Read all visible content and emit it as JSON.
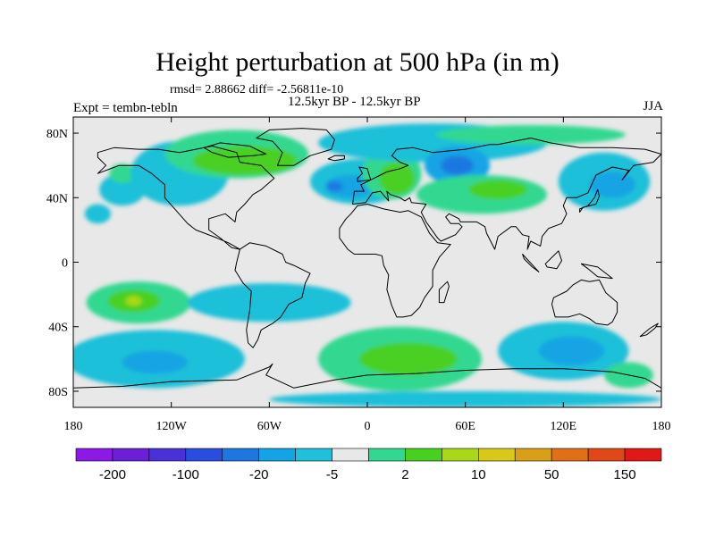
{
  "title": "Height perturbation at 500 hPa (in m)",
  "stats": "rmsd= 2.88662 diff= -2.56811e-10",
  "left_label": "Expt = tembn-tebln",
  "center_label": "12.5kyr BP - 12.5kyr BP",
  "season": "JJA",
  "map": {
    "lon_range": [
      -180,
      180
    ],
    "lat_range": [
      -90,
      90
    ],
    "lat_ticks": [
      {
        "value": 80,
        "label": "80N"
      },
      {
        "value": 40,
        "label": "40N"
      },
      {
        "value": 0,
        "label": "0"
      },
      {
        "value": -40,
        "label": "40S"
      },
      {
        "value": -80,
        "label": "80S"
      }
    ],
    "lon_ticks": [
      {
        "value": -180,
        "label": "180"
      },
      {
        "value": -120,
        "label": "120W"
      },
      {
        "value": -60,
        "label": "60W"
      },
      {
        "value": 0,
        "label": "0"
      },
      {
        "value": 60,
        "label": "60E"
      },
      {
        "value": 120,
        "label": "120E"
      },
      {
        "value": 180,
        "label": "180"
      }
    ],
    "background_color": "#e8e8e8",
    "fields": [
      {
        "lon": -150,
        "lat": 45,
        "rx": 14,
        "ry": 10,
        "color": "#1fc0d8"
      },
      {
        "lon": -150,
        "lat": 55,
        "rx": 8,
        "ry": 6,
        "color": "#30d890"
      },
      {
        "lon": -165,
        "lat": 30,
        "rx": 8,
        "ry": 6,
        "color": "#1fc0d8"
      },
      {
        "lon": -115,
        "lat": 55,
        "rx": 30,
        "ry": 20,
        "color": "#1fc0d8"
      },
      {
        "lon": -80,
        "lat": 67,
        "rx": 44,
        "ry": 15,
        "color": "#30d890"
      },
      {
        "lon": -75,
        "lat": 63,
        "rx": 32,
        "ry": 9,
        "color": "#48d020"
      },
      {
        "lon": -5,
        "lat": 50,
        "rx": 30,
        "ry": 14,
        "color": "#1fc0d8"
      },
      {
        "lon": -10,
        "lat": 47,
        "rx": 16,
        "ry": 7,
        "color": "#12a4e4"
      },
      {
        "lon": -20,
        "lat": 47,
        "rx": 5,
        "ry": 3,
        "color": "#1c78e0"
      },
      {
        "lon": 15,
        "lat": 55,
        "rx": 18,
        "ry": 16,
        "color": "#30d890"
      },
      {
        "lon": 18,
        "lat": 52,
        "rx": 11,
        "ry": 10,
        "color": "#48d020"
      },
      {
        "lon": 40,
        "lat": 74,
        "rx": 70,
        "ry": 12,
        "color": "#1fc0d8"
      },
      {
        "lon": 100,
        "lat": 79,
        "rx": 58,
        "ry": 6,
        "color": "#30d890"
      },
      {
        "lon": 55,
        "lat": 60,
        "rx": 20,
        "ry": 12,
        "color": "#12a4e4"
      },
      {
        "lon": 55,
        "lat": 60,
        "rx": 10,
        "ry": 6,
        "color": "#1c78e0"
      },
      {
        "lon": 70,
        "lat": 42,
        "rx": 40,
        "ry": 12,
        "color": "#30d890"
      },
      {
        "lon": 80,
        "lat": 45,
        "rx": 18,
        "ry": 6,
        "color": "#48d020"
      },
      {
        "lon": 145,
        "lat": 50,
        "rx": 28,
        "ry": 18,
        "color": "#1fc0d8"
      },
      {
        "lon": 150,
        "lat": 48,
        "rx": 14,
        "ry": 8,
        "color": "#12a4e4"
      },
      {
        "lon": -140,
        "lat": -25,
        "rx": 32,
        "ry": 13,
        "color": "#30d890"
      },
      {
        "lon": -143,
        "lat": -24,
        "rx": 16,
        "ry": 7,
        "color": "#48d020"
      },
      {
        "lon": -143,
        "lat": -24,
        "rx": 5,
        "ry": 3,
        "color": "#a8d818"
      },
      {
        "lon": -60,
        "lat": -25,
        "rx": 50,
        "ry": 12,
        "color": "#1fc0d8"
      },
      {
        "lon": -130,
        "lat": -60,
        "rx": 55,
        "ry": 18,
        "color": "#1fc0d8"
      },
      {
        "lon": -130,
        "lat": -62,
        "rx": 20,
        "ry": 7,
        "color": "#12a4e4"
      },
      {
        "lon": 20,
        "lat": -60,
        "rx": 50,
        "ry": 20,
        "color": "#30d890"
      },
      {
        "lon": 25,
        "lat": -60,
        "rx": 30,
        "ry": 10,
        "color": "#48d020"
      },
      {
        "lon": 120,
        "lat": -55,
        "rx": 40,
        "ry": 18,
        "color": "#1fc0d8"
      },
      {
        "lon": 125,
        "lat": -55,
        "rx": 20,
        "ry": 9,
        "color": "#12a4e4"
      },
      {
        "lon": 60,
        "lat": -85,
        "rx": 120,
        "ry": 5,
        "color": "#1fc0d8"
      },
      {
        "lon": 160,
        "lat": -70,
        "rx": 15,
        "ry": 8,
        "color": "#30d890"
      }
    ],
    "land": [
      [
        [
          -165,
          68
        ],
        [
          -155,
          71
        ],
        [
          -140,
          70
        ],
        [
          -128,
          70
        ],
        [
          -115,
          68
        ],
        [
          -95,
          72
        ],
        [
          -80,
          68
        ],
        [
          -78,
          62
        ],
        [
          -65,
          60
        ],
        [
          -57,
          52
        ],
        [
          -65,
          45
        ],
        [
          -70,
          42
        ],
        [
          -75,
          36
        ],
        [
          -80,
          31
        ],
        [
          -81,
          25
        ],
        [
          -87,
          30
        ],
        [
          -97,
          27
        ],
        [
          -97,
          20
        ],
        [
          -90,
          15
        ],
        [
          -83,
          9
        ],
        [
          -78,
          8
        ],
        [
          -85,
          12
        ],
        [
          -92,
          15
        ],
        [
          -105,
          20
        ],
        [
          -110,
          24
        ],
        [
          -117,
          32
        ],
        [
          -124,
          40
        ],
        [
          -124,
          48
        ],
        [
          -132,
          55
        ],
        [
          -140,
          60
        ],
        [
          -152,
          60
        ],
        [
          -165,
          55
        ],
        [
          -160,
          60
        ],
        [
          -165,
          65
        ]
      ],
      [
        [
          -78,
          8
        ],
        [
          -72,
          12
        ],
        [
          -62,
          10
        ],
        [
          -52,
          5
        ],
        [
          -50,
          0
        ],
        [
          -45,
          -2
        ],
        [
          -35,
          -7
        ],
        [
          -38,
          -13
        ],
        [
          -40,
          -22
        ],
        [
          -48,
          -26
        ],
        [
          -53,
          -34
        ],
        [
          -58,
          -38
        ],
        [
          -65,
          -42
        ],
        [
          -67,
          -48
        ],
        [
          -70,
          -53
        ],
        [
          -73,
          -50
        ],
        [
          -74,
          -42
        ],
        [
          -72,
          -30
        ],
        [
          -71,
          -18
        ],
        [
          -76,
          -13
        ],
        [
          -81,
          -5
        ],
        [
          -80,
          0
        ]
      ],
      [
        [
          -17,
          21
        ],
        [
          -17,
          15
        ],
        [
          -12,
          8
        ],
        [
          -8,
          5
        ],
        [
          5,
          5
        ],
        [
          9,
          4
        ],
        [
          10,
          -2
        ],
        [
          13,
          -8
        ],
        [
          12,
          -17
        ],
        [
          15,
          -27
        ],
        [
          18,
          -34
        ],
        [
          22,
          -34
        ],
        [
          27,
          -33
        ],
        [
          32,
          -28
        ],
        [
          35,
          -22
        ],
        [
          40,
          -15
        ],
        [
          40,
          -5
        ],
        [
          44,
          3
        ],
        [
          51,
          11
        ],
        [
          43,
          12
        ],
        [
          38,
          18
        ],
        [
          33,
          28
        ],
        [
          25,
          32
        ],
        [
          20,
          31
        ],
        [
          10,
          33
        ],
        [
          0,
          36
        ],
        [
          -6,
          35
        ],
        [
          -10,
          30
        ],
        [
          -13,
          27
        ]
      ],
      [
        [
          -9,
          36
        ],
        [
          -8,
          44
        ],
        [
          -2,
          44
        ],
        [
          -4,
          48
        ],
        [
          2,
          51
        ],
        [
          8,
          54
        ],
        [
          12,
          56
        ],
        [
          20,
          58
        ],
        [
          25,
          60
        ],
        [
          20,
          62
        ],
        [
          15,
          66
        ],
        [
          18,
          70
        ],
        [
          28,
          71
        ],
        [
          40,
          68
        ],
        [
          60,
          70
        ],
        [
          75,
          73
        ],
        [
          80,
          73
        ],
        [
          100,
          77
        ],
        [
          112,
          74
        ],
        [
          130,
          71
        ],
        [
          150,
          71
        ],
        [
          170,
          70
        ],
        [
          180,
          67
        ],
        [
          175,
          62
        ],
        [
          163,
          60
        ],
        [
          156,
          51
        ],
        [
          160,
          57
        ],
        [
          150,
          59
        ],
        [
          140,
          54
        ],
        [
          135,
          43
        ],
        [
          128,
          40
        ],
        [
          122,
          40
        ],
        [
          120,
          35
        ],
        [
          122,
          30
        ],
        [
          119,
          24
        ],
        [
          111,
          21
        ],
        [
          107,
          16
        ],
        [
          106,
          10
        ],
        [
          100,
          13
        ],
        [
          98,
          8
        ],
        [
          99,
          16
        ],
        [
          95,
          17
        ],
        [
          91,
          22
        ],
        [
          88,
          22
        ],
        [
          80,
          16
        ],
        [
          78,
          8
        ],
        [
          73,
          18
        ],
        [
          72,
          22
        ],
        [
          67,
          25
        ],
        [
          57,
          25
        ],
        [
          56,
          27
        ],
        [
          50,
          30
        ],
        [
          48,
          28
        ],
        [
          51,
          24
        ],
        [
          56,
          24
        ],
        [
          58,
          22
        ],
        [
          54,
          17
        ],
        [
          45,
          13
        ],
        [
          43,
          15
        ],
        [
          36,
          25
        ],
        [
          33,
          31
        ],
        [
          36,
          36
        ],
        [
          27,
          37
        ],
        [
          26,
          40
        ],
        [
          23,
          38
        ],
        [
          20,
          40
        ],
        [
          14,
          42
        ],
        [
          12,
          44
        ],
        [
          13,
          38
        ],
        [
          8,
          44
        ],
        [
          3,
          43
        ],
        [
          -1,
          37
        ]
      ],
      [
        [
          -55,
          60
        ],
        [
          -45,
          60
        ],
        [
          -35,
          66
        ],
        [
          -22,
          70
        ],
        [
          -20,
          76
        ],
        [
          -25,
          82
        ],
        [
          -40,
          83
        ],
        [
          -60,
          82
        ],
        [
          -68,
          77
        ],
        [
          -58,
          75
        ],
        [
          -52,
          68
        ]
      ],
      [
        [
          114,
          -22
        ],
        [
          113,
          -26
        ],
        [
          115,
          -34
        ],
        [
          123,
          -34
        ],
        [
          130,
          -32
        ],
        [
          136,
          -35
        ],
        [
          140,
          -38
        ],
        [
          147,
          -39
        ],
        [
          150,
          -37
        ],
        [
          153,
          -31
        ],
        [
          153,
          -25
        ],
        [
          146,
          -19
        ],
        [
          142,
          -11
        ],
        [
          136,
          -12
        ],
        [
          131,
          -11
        ],
        [
          126,
          -14
        ],
        [
          122,
          -18
        ]
      ],
      [
        [
          -180,
          -78
        ],
        [
          -150,
          -77
        ],
        [
          -120,
          -74
        ],
        [
          -80,
          -73
        ],
        [
          -60,
          -65
        ],
        [
          -58,
          -63
        ],
        [
          -62,
          -70
        ],
        [
          -45,
          -78
        ],
        [
          -20,
          -73
        ],
        [
          0,
          -70
        ],
        [
          30,
          -69
        ],
        [
          60,
          -67
        ],
        [
          90,
          -66
        ],
        [
          120,
          -66
        ],
        [
          150,
          -68
        ],
        [
          170,
          -72
        ],
        [
          180,
          -78
        ],
        [
          180,
          -90
        ],
        [
          -180,
          -90
        ]
      ],
      [
        [
          -6,
          50
        ],
        [
          2,
          51
        ],
        [
          0,
          58
        ],
        [
          -5,
          59
        ],
        [
          -3,
          55
        ],
        [
          -6,
          52
        ]
      ],
      [
        [
          130,
          31
        ],
        [
          132,
          34
        ],
        [
          140,
          36
        ],
        [
          142,
          41
        ],
        [
          141,
          45
        ],
        [
          139,
          40
        ],
        [
          135,
          35
        ],
        [
          130,
          33
        ]
      ],
      [
        [
          44,
          -25
        ],
        [
          47,
          -25
        ],
        [
          50,
          -15
        ],
        [
          49,
          -12
        ],
        [
          44,
          -17
        ]
      ],
      [
        [
          95,
          5
        ],
        [
          105,
          -6
        ],
        [
          101,
          -3
        ],
        [
          96,
          2
        ]
      ],
      [
        [
          109,
          -1
        ],
        [
          117,
          7
        ],
        [
          119,
          1
        ],
        [
          116,
          -4
        ],
        [
          110,
          -3
        ]
      ],
      [
        [
          131,
          -1
        ],
        [
          141,
          -3
        ],
        [
          150,
          -10
        ],
        [
          141,
          -9
        ],
        [
          135,
          -4
        ]
      ],
      [
        [
          -85,
          65
        ],
        [
          -70,
          66
        ],
        [
          -62,
          67
        ],
        [
          -72,
          72
        ],
        [
          -90,
          74
        ],
        [
          -100,
          71
        ],
        [
          -95,
          68
        ]
      ],
      [
        [
          -24,
          64
        ],
        [
          -20,
          66
        ],
        [
          -14,
          66
        ],
        [
          -14,
          64
        ],
        [
          -20,
          63
        ]
      ],
      [
        [
          173,
          -41
        ],
        [
          178,
          -38
        ],
        [
          176,
          -41
        ],
        [
          171,
          -45
        ],
        [
          167,
          -46
        ]
      ]
    ]
  },
  "colorbar": {
    "colors": [
      "#8c1ae6",
      "#6b1fd9",
      "#4a30d8",
      "#2a4de0",
      "#1c78e0",
      "#12a4e4",
      "#1fc0d8",
      "#e8e8e8",
      "#30d890",
      "#48d020",
      "#a8d818",
      "#d8c818",
      "#d8a018",
      "#e07018",
      "#e04818",
      "#e01818"
    ],
    "labels": [
      "-200",
      "-100",
      "-20",
      "-5",
      "2",
      "10",
      "50",
      "150"
    ]
  }
}
